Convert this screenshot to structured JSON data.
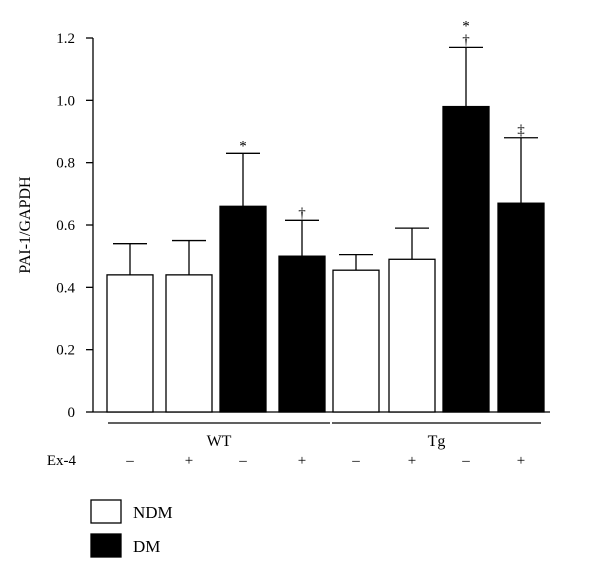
{
  "chart_data": {
    "type": "bar",
    "ylabel": "PAI-1/GAPDH",
    "ylim": [
      0,
      1.2
    ],
    "yticks": [
      "0",
      "0.2",
      "0.4",
      "0.6",
      "0.8",
      "1.0",
      "1.2"
    ],
    "groups": [
      {
        "name": "WT",
        "bars": [
          0,
          1,
          2,
          3
        ]
      },
      {
        "name": "Tg",
        "bars": [
          4,
          5,
          6,
          7
        ]
      }
    ],
    "row_label": "Ex-4",
    "bars": [
      {
        "group": "WT",
        "condition": "NDM",
        "ex4": "–",
        "value": 0.44,
        "error": 0.1,
        "markers": []
      },
      {
        "group": "WT",
        "condition": "NDM",
        "ex4": "+",
        "value": 0.44,
        "error": 0.11,
        "markers": []
      },
      {
        "group": "WT",
        "condition": "DM",
        "ex4": "–",
        "value": 0.66,
        "error": 0.17,
        "markers": [
          "*"
        ]
      },
      {
        "group": "WT",
        "condition": "DM",
        "ex4": "+",
        "value": 0.5,
        "error": 0.115,
        "markers": [
          "†"
        ]
      },
      {
        "group": "Tg",
        "condition": "NDM",
        "ex4": "–",
        "value": 0.455,
        "error": 0.05,
        "markers": []
      },
      {
        "group": "Tg",
        "condition": "NDM",
        "ex4": "+",
        "value": 0.49,
        "error": 0.1,
        "markers": []
      },
      {
        "group": "Tg",
        "condition": "DM",
        "ex4": "–",
        "value": 0.98,
        "error": 0.19,
        "markers": [
          "*",
          "†"
        ]
      },
      {
        "group": "Tg",
        "condition": "DM",
        "ex4": "+",
        "value": 0.67,
        "error": 0.21,
        "markers": [
          "‡"
        ]
      }
    ],
    "legend": [
      {
        "label": "NDM",
        "fill": "#ffffff"
      },
      {
        "label": "DM",
        "fill": "#000000"
      }
    ],
    "legend_position": "bottom-left"
  }
}
